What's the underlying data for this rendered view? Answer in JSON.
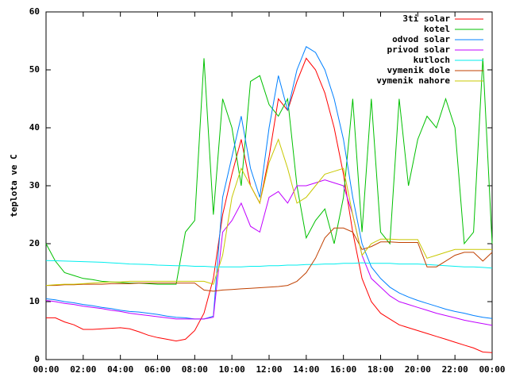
{
  "chart_data": {
    "type": "line",
    "y_label": "teplota ve C",
    "x": [
      0,
      0.5,
      1,
      1.5,
      2,
      2.5,
      3,
      3.5,
      4,
      4.5,
      5,
      5.5,
      6,
      6.5,
      7,
      7.5,
      8,
      8.5,
      9,
      9.5,
      10,
      10.5,
      11,
      11.5,
      12,
      12.5,
      13,
      13.5,
      14,
      14.5,
      15,
      15.5,
      16,
      16.5,
      17,
      17.5,
      18,
      18.5,
      19,
      19.5,
      20,
      20.5,
      21,
      21.5,
      22,
      22.5,
      23,
      23.5,
      24
    ],
    "xlim": [
      0,
      24
    ],
    "xticks": [
      {
        "value": 0,
        "label": "00:00"
      },
      {
        "value": 2,
        "label": "02:00"
      },
      {
        "value": 4,
        "label": "04:00"
      },
      {
        "value": 6,
        "label": "06:00"
      },
      {
        "value": 8,
        "label": "08:00"
      },
      {
        "value": 10,
        "label": "10:00"
      },
      {
        "value": 12,
        "label": "12:00"
      },
      {
        "value": 14,
        "label": "14:00"
      },
      {
        "value": 16,
        "label": "16:00"
      },
      {
        "value": 18,
        "label": "18:00"
      },
      {
        "value": 20,
        "label": "20:00"
      },
      {
        "value": 22,
        "label": "22:00"
      },
      {
        "value": 24,
        "label": "00:00"
      }
    ],
    "ylim": [
      0,
      60
    ],
    "yticks": [
      0,
      10,
      20,
      30,
      40,
      50,
      60
    ],
    "legend": "top-right",
    "series": [
      {
        "name": "3ti solar",
        "color": "#ff0000",
        "values": [
          7.2,
          7.2,
          6.5,
          6,
          5.2,
          5.2,
          5.3,
          5.4,
          5.5,
          5.3,
          4.8,
          4.2,
          3.8,
          3.5,
          3.2,
          3.5,
          5,
          8,
          14,
          25,
          32,
          38,
          30,
          27,
          35,
          45,
          43,
          48,
          52,
          50,
          46,
          40,
          32,
          22,
          14,
          10,
          8,
          7,
          6,
          5.5,
          5,
          4.5,
          4,
          3.5,
          3,
          2.5,
          2,
          1.3,
          1.2
        ]
      },
      {
        "name": "kotel",
        "color": "#00c000",
        "values": [
          20,
          17,
          15,
          14.5,
          14,
          13.8,
          13.5,
          13.4,
          13.3,
          13.2,
          13.2,
          13.1,
          13,
          13,
          13,
          22,
          24,
          52,
          25,
          45,
          40,
          30,
          48,
          49,
          44,
          42,
          45,
          30,
          21,
          24,
          26,
          20,
          28,
          45,
          22,
          45,
          22,
          20,
          45,
          30,
          38,
          42,
          40,
          45,
          40,
          20,
          22,
          52,
          20
        ]
      },
      {
        "name": "odvod solar",
        "color": "#0080ff",
        "values": [
          10.5,
          10.3,
          10,
          9.8,
          9.5,
          9.3,
          9,
          8.8,
          8.5,
          8.3,
          8.2,
          8,
          7.8,
          7.5,
          7.3,
          7.2,
          7,
          7,
          7.5,
          28,
          35,
          42,
          33,
          28,
          40,
          49,
          43,
          50,
          54,
          53,
          50,
          45,
          38,
          28,
          20,
          16,
          14,
          12.5,
          11.5,
          10.8,
          10.2,
          9.7,
          9.2,
          8.7,
          8.3,
          8,
          7.6,
          7.3,
          7.1
        ]
      },
      {
        "name": "privod solar",
        "color": "#c000ff",
        "values": [
          10.2,
          10,
          9.7,
          9.5,
          9.2,
          9,
          8.8,
          8.5,
          8.3,
          8,
          7.8,
          7.6,
          7.4,
          7.2,
          7,
          7,
          7,
          7,
          7.3,
          22,
          24,
          27,
          23,
          22,
          28,
          29,
          27,
          30,
          30,
          30.5,
          31,
          30.5,
          30,
          25,
          18,
          14,
          12.5,
          11,
          10,
          9.5,
          9,
          8.5,
          8,
          7.6,
          7.2,
          6.8,
          6.5,
          6.2,
          5.9
        ]
      },
      {
        "name": "kutloch",
        "color": "#00eeee",
        "values": [
          17.1,
          17.05,
          17,
          16.95,
          16.9,
          16.85,
          16.8,
          16.7,
          16.6,
          16.5,
          16.45,
          16.4,
          16.3,
          16.25,
          16.2,
          16.2,
          16.1,
          16.1,
          16,
          16,
          16,
          16,
          16.1,
          16.1,
          16.2,
          16.2,
          16.3,
          16.3,
          16.4,
          16.4,
          16.5,
          16.5,
          16.6,
          16.6,
          16.7,
          16.6,
          16.6,
          16.6,
          16.5,
          16.5,
          16.5,
          16.4,
          16.3,
          16.2,
          16.1,
          16,
          16,
          15.9,
          15.8
        ]
      },
      {
        "name": "vymenik dole",
        "color": "#c04000",
        "values": [
          12.8,
          12.8,
          12.9,
          12.9,
          13,
          13,
          13,
          13.1,
          13.1,
          13.1,
          13.2,
          13.2,
          13.2,
          13.2,
          13.2,
          13.2,
          13.2,
          12,
          11.8,
          12,
          12.1,
          12.2,
          12.3,
          12.4,
          12.5,
          12.6,
          12.8,
          13.5,
          15,
          17.5,
          21,
          22.7,
          22.7,
          22,
          19,
          19.5,
          20.3,
          20.3,
          20.2,
          20.2,
          20.2,
          16,
          16,
          17,
          18,
          18.5,
          18.5,
          17,
          18.5
        ]
      },
      {
        "name": "vymenik nahore",
        "color": "#c8c800",
        "values": [
          12.8,
          12.9,
          13,
          13,
          13.1,
          13.2,
          13.3,
          13.4,
          13.4,
          13.5,
          13.5,
          13.5,
          13.5,
          13.5,
          13.5,
          13.5,
          13.5,
          13.5,
          13,
          18,
          28,
          33,
          30,
          27,
          34,
          38,
          33,
          27,
          28,
          30,
          32,
          32.5,
          33,
          25,
          18,
          20,
          20.8,
          20.8,
          20.7,
          20.7,
          20.7,
          17.5,
          18,
          18.5,
          19,
          19,
          19,
          19,
          19
        ]
      }
    ]
  }
}
